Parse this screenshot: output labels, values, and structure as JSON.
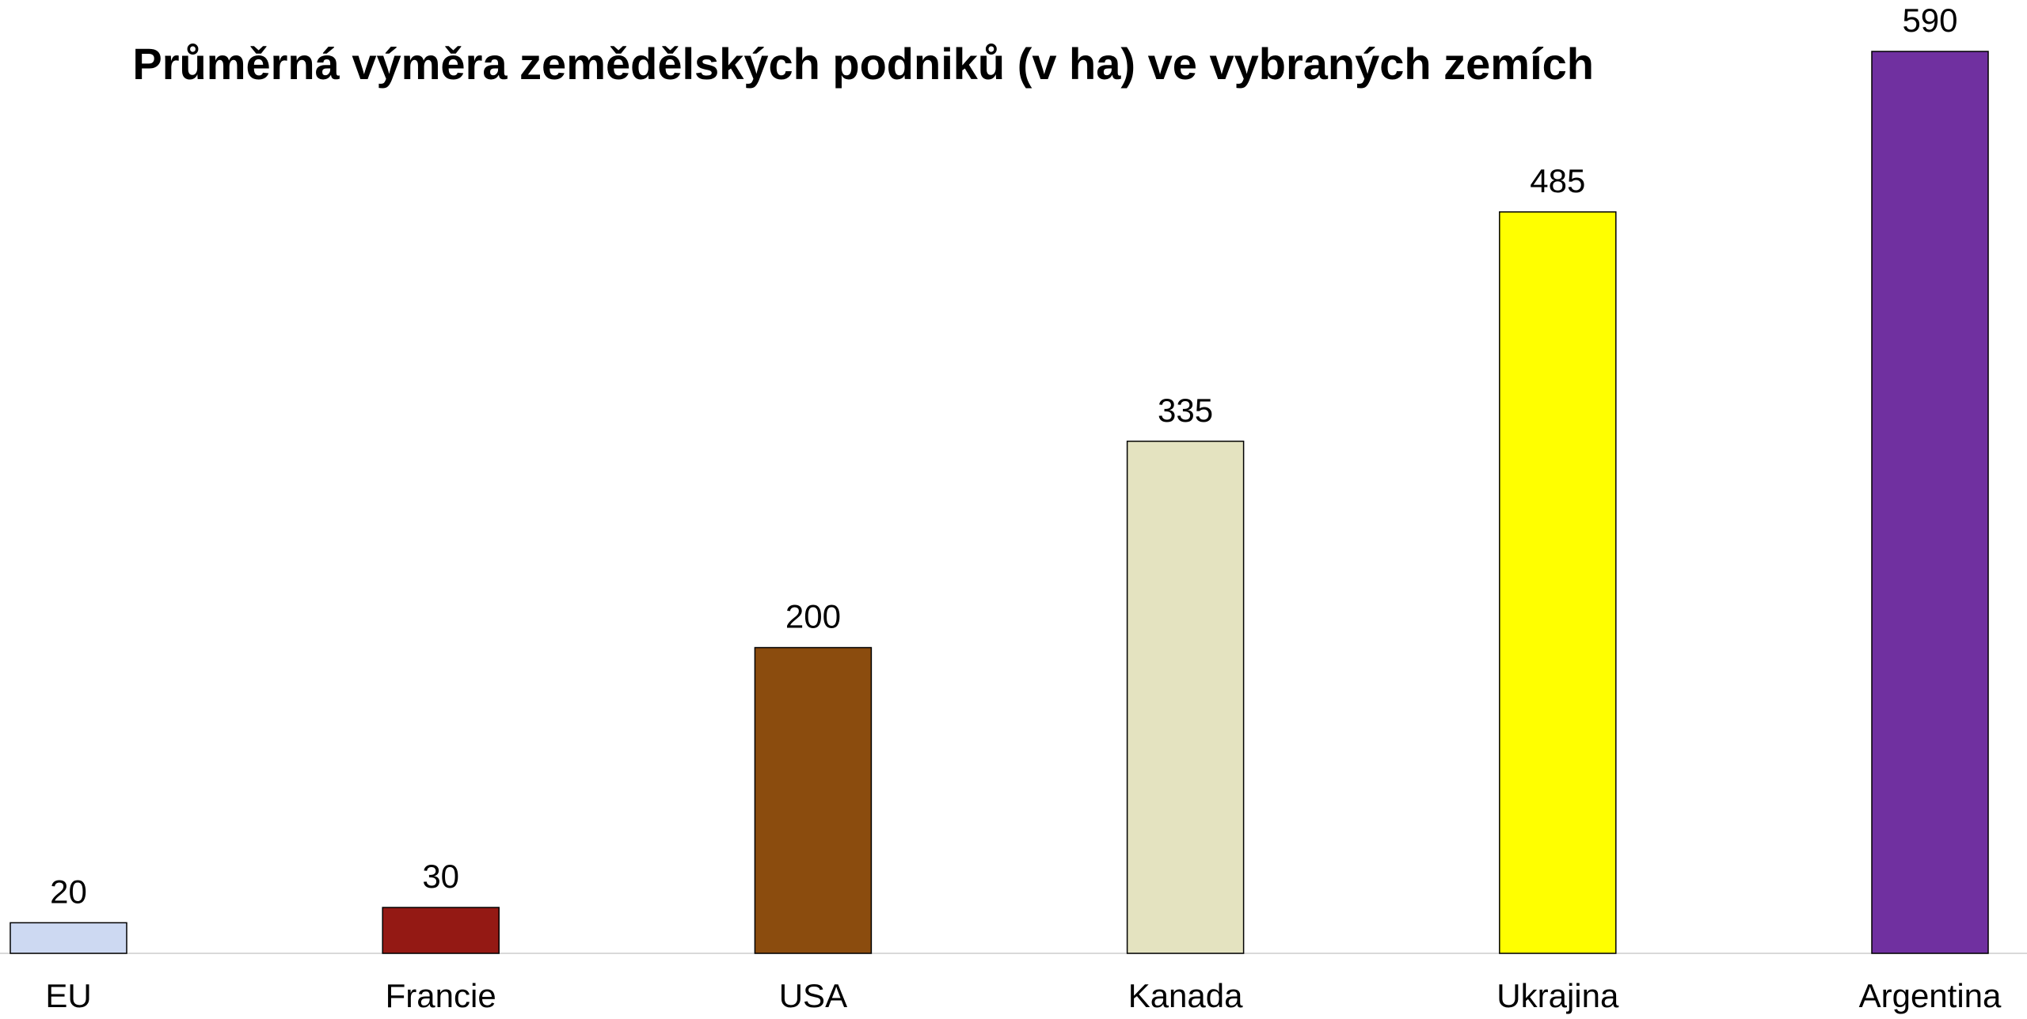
{
  "chart_data": {
    "type": "bar",
    "title": "Průměrná výměra zemědělských podniků (v ha) ve vybraných zemích",
    "categories": [
      "EU",
      "Francie",
      "USA",
      "Kanada",
      "Ukrajina",
      "Argentina"
    ],
    "values": [
      20,
      30,
      200,
      335,
      485,
      590
    ],
    "colors": [
      "#cdd9f2",
      "#941914",
      "#8b4c0e",
      "#e4e3c0",
      "#ffff00",
      "#7030a0"
    ]
  }
}
